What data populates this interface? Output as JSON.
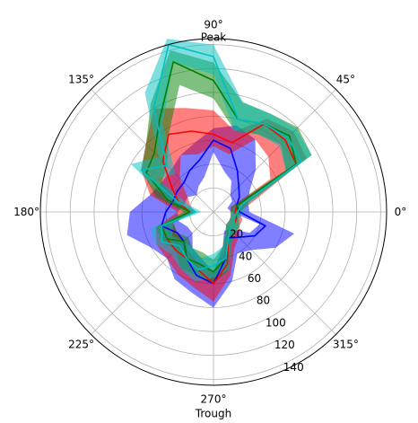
{
  "chart_data": {
    "type": "polar-area-line",
    "radial_range": [
      0,
      145
    ],
    "radial_ticks": [
      20,
      40,
      60,
      80,
      100,
      120,
      140
    ],
    "radial_tick_labels": [
      "20",
      "40",
      "60",
      "80",
      "100",
      "120",
      "140"
    ],
    "radial_tick_angle_deg": 292,
    "angle_ticks_deg": [
      0,
      45,
      90,
      135,
      180,
      225,
      270,
      315
    ],
    "angle_tick_labels": [
      "0°",
      "45°",
      "90°",
      "135°",
      "180°",
      "225°",
      "270°",
      "315°"
    ],
    "angle_annotations": [
      {
        "angle_deg": 90,
        "text": "Peak"
      },
      {
        "angle_deg": 270,
        "text": "Trough"
      }
    ],
    "grid": true,
    "theta_deg": [
      0,
      15,
      30,
      45,
      60,
      75,
      90,
      105,
      120,
      135,
      150,
      165,
      180,
      195,
      210,
      225,
      240,
      255,
      270,
      285,
      300,
      315,
      330,
      345
    ],
    "series": [
      {
        "color": "#0000ff",
        "line": [
          22,
          20,
          25,
          30,
          40,
          55,
          60,
          45,
          40,
          35,
          35,
          35,
          40,
          45,
          35,
          35,
          45,
          55,
          60,
          40,
          25,
          30,
          40,
          45
        ],
        "band_low": [
          15,
          12,
          18,
          20,
          30,
          35,
          50,
          30,
          25,
          20,
          25,
          25,
          30,
          30,
          25,
          25,
          35,
          40,
          50,
          30,
          18,
          20,
          35,
          40
        ],
        "band_high": [
          30,
          30,
          35,
          50,
          70,
          75,
          70,
          60,
          55,
          50,
          50,
          55,
          70,
          75,
          60,
          55,
          65,
          70,
          80,
          60,
          40,
          45,
          60,
          70
        ]
      },
      {
        "color": "#ff0000",
        "line": [
          18,
          20,
          80,
          85,
          85,
          60,
          65,
          70,
          75,
          60,
          40,
          30,
          20,
          45,
          45,
          45,
          45,
          50,
          60,
          45,
          25,
          20,
          20,
          20
        ],
        "band_low": [
          14,
          15,
          55,
          65,
          70,
          50,
          55,
          50,
          55,
          40,
          25,
          20,
          15,
          35,
          35,
          35,
          40,
          45,
          50,
          35,
          20,
          15,
          15,
          15
        ],
        "band_high": [
          22,
          35,
          90,
          95,
          90,
          70,
          85,
          90,
          100,
          80,
          70,
          55,
          30,
          50,
          55,
          55,
          60,
          65,
          75,
          55,
          35,
          30,
          25,
          25
        ]
      },
      {
        "color": "#008000",
        "line": [
          20,
          20,
          80,
          90,
          85,
          80,
          110,
          130,
          90,
          70,
          65,
          40,
          20,
          45,
          45,
          35,
          45,
          45,
          50,
          40,
          25,
          20,
          20,
          18
        ],
        "band_low": [
          15,
          15,
          70,
          80,
          75,
          70,
          95,
          110,
          75,
          55,
          50,
          30,
          15,
          35,
          35,
          30,
          35,
          35,
          40,
          30,
          20,
          15,
          15,
          15
        ],
        "band_high": [
          22,
          30,
          95,
          100,
          95,
          95,
          125,
          140,
          105,
          80,
          70,
          50,
          25,
          50,
          50,
          45,
          55,
          55,
          60,
          50,
          30,
          25,
          25,
          22
        ]
      },
      {
        "color": "#00bfbf",
        "line": [
          20,
          25,
          85,
          88,
          85,
          80,
          130,
          145,
          100,
          55,
          70,
          30,
          15,
          45,
          50,
          40,
          45,
          50,
          45,
          40,
          25,
          20,
          20,
          18
        ],
        "band_low": [
          15,
          18,
          70,
          78,
          75,
          70,
          115,
          130,
          85,
          45,
          55,
          20,
          10,
          35,
          40,
          35,
          35,
          40,
          35,
          30,
          20,
          15,
          15,
          15
        ],
        "band_high": [
          25,
          32,
          95,
          98,
          95,
          95,
          140,
          150,
          115,
          65,
          80,
          40,
          22,
          55,
          55,
          50,
          55,
          60,
          55,
          50,
          30,
          25,
          25,
          22
        ]
      }
    ]
  }
}
